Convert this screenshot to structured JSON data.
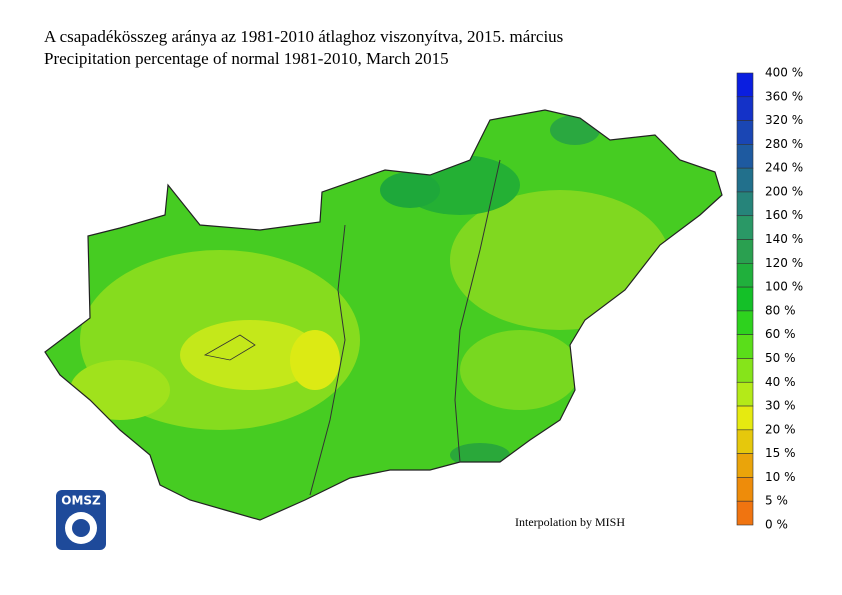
{
  "header": {
    "title": "A csapadékösszeg aránya az 1981-2010 átlaghoz viszonyítva, 2015. március",
    "subtitle": "Precipitation percentage of normal 1981-2010, March 2015"
  },
  "legend": {
    "labels": [
      "400 %",
      "360 %",
      "320 %",
      "280 %",
      "240 %",
      "200 %",
      "160 %",
      "140 %",
      "120 %",
      "100 %",
      "80 %",
      "60 %",
      "50 %",
      "40 %",
      "30 %",
      "20 %",
      "15 %",
      "10 %",
      "5 %",
      "0 %"
    ],
    "colors": [
      "#0a1ee0",
      "#1432c8",
      "#1a46b4",
      "#1e5aa0",
      "#22708c",
      "#26847a",
      "#2a9866",
      "#2aa050",
      "#20b03c",
      "#14c028",
      "#2ed21e",
      "#5ade1a",
      "#86e41a",
      "#b4ea18",
      "#e6ea10",
      "#e6c80c",
      "#eaa40a",
      "#ee8c0a",
      "#f07410"
    ]
  },
  "credit": "Interpolation by MISH",
  "logo": "OMSZ"
}
